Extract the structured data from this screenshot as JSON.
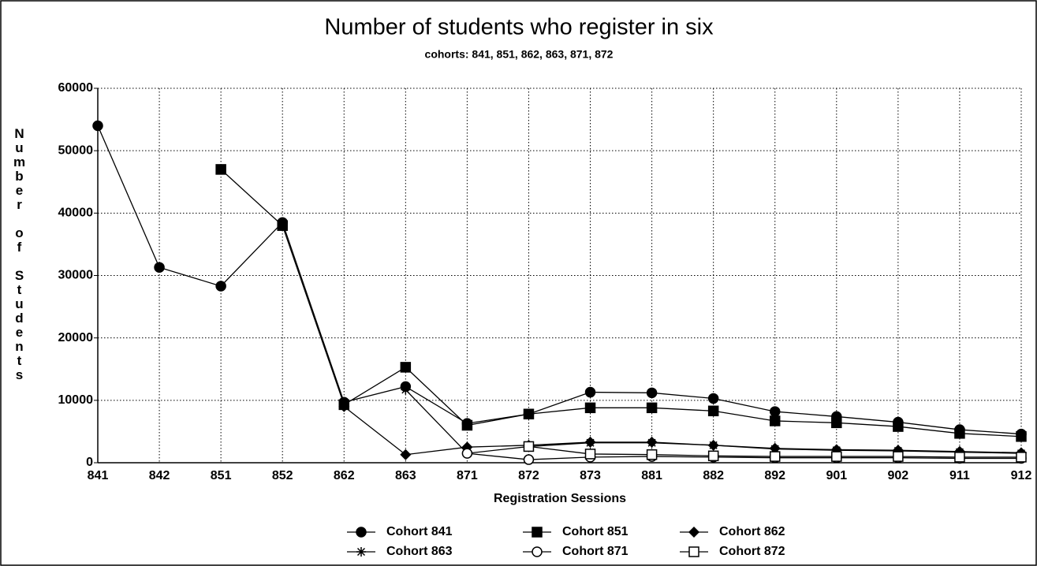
{
  "chart_data": {
    "type": "line",
    "title": "Number of students who register in six",
    "subtitle": "cohorts: 841, 851, 862, 863, 871, 872",
    "x_label": "Registration Sessions",
    "y_label": "Number of Students",
    "categories": [
      "841",
      "842",
      "851",
      "852",
      "862",
      "863",
      "871",
      "872",
      "873",
      "881",
      "882",
      "892",
      "901",
      "902",
      "911",
      "912"
    ],
    "ylim": [
      0,
      60000
    ],
    "yticks": [
      0,
      10000,
      20000,
      30000,
      40000,
      50000,
      60000
    ],
    "grid": true,
    "legend": "bottom",
    "series": [
      {
        "name": "Cohort 841",
        "color": "#000000",
        "marker": "circle",
        "values": [
          54000,
          31300,
          28300,
          38500,
          9700,
          12200,
          6300,
          7800,
          11300,
          11200,
          10300,
          8200,
          7400,
          6500,
          5300,
          4600
        ]
      },
      {
        "name": "Cohort 851",
        "color": "#000000",
        "marker": "square",
        "values": [
          null,
          null,
          47000,
          38000,
          9300,
          15300,
          6000,
          7800,
          8800,
          8800,
          8300,
          6700,
          6400,
          5800,
          4700,
          4200
        ]
      },
      {
        "name": "Cohort 862",
        "color": "#000000",
        "marker": "diamond",
        "values": [
          null,
          null,
          null,
          null,
          9000,
          1300,
          2500,
          2800,
          3300,
          3300,
          2800,
          2300,
          2100,
          2000,
          1800,
          1600
        ]
      },
      {
        "name": "Cohort 863",
        "color": "#000000",
        "marker": "star",
        "values": [
          null,
          null,
          null,
          null,
          null,
          11700,
          1500,
          2600,
          3200,
          3200,
          2800,
          2200,
          2000,
          1900,
          1700,
          1500
        ]
      },
      {
        "name": "Cohort 871",
        "color": "#000000",
        "marker": "circle-open",
        "values": [
          null,
          null,
          null,
          null,
          null,
          null,
          1500,
          500,
          900,
          1000,
          900,
          800,
          800,
          800,
          700,
          700
        ]
      },
      {
        "name": "Cohort 872",
        "color": "#000000",
        "marker": "square-open",
        "values": [
          null,
          null,
          null,
          null,
          null,
          null,
          null,
          2600,
          1400,
          1300,
          1100,
          1000,
          1000,
          1000,
          900,
          900
        ]
      }
    ]
  }
}
